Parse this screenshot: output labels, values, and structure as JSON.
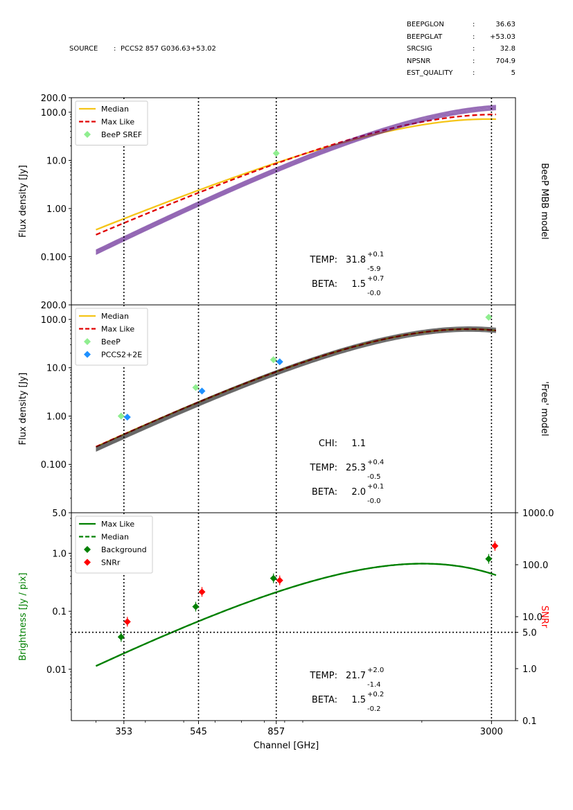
{
  "header": {
    "source_key": "SOURCE",
    "source_sep": ":",
    "source_value": "PCCS2 857 G036.63+53.02",
    "fields": [
      {
        "key": "BEEPGLON",
        "sep": ":",
        "value": "36.63"
      },
      {
        "key": "BEEPGLAT",
        "sep": ":",
        "value": "+53.03"
      },
      {
        "key": "SRCSIG",
        "sep": ":",
        "value": "32.8"
      },
      {
        "key": "NPSNR",
        "sep": ":",
        "value": "704.9"
      },
      {
        "key": "EST_QUALITY",
        "sep": ":",
        "value": "5"
      }
    ]
  },
  "x_axis": {
    "label": "Channel [GHz]",
    "ticks": [
      {
        "v": 353,
        "label": "353"
      },
      {
        "v": 545,
        "label": "545"
      },
      {
        "v": 857,
        "label": "857"
      },
      {
        "v": 3000,
        "label": "3000"
      }
    ],
    "xlim": [
      260,
      3450
    ],
    "vlines": [
      353,
      545,
      857,
      3000
    ]
  },
  "chart_data": [
    {
      "type": "line",
      "panel": "top",
      "ylabel": "Flux density  [Jy]",
      "right_label": "BeeP MBB model",
      "yscale": "log",
      "ylim": [
        0.01,
        200
      ],
      "yticks": [
        {
          "v": 0.1,
          "label": "0.100"
        },
        {
          "v": 1,
          "label": "1.00"
        },
        {
          "v": 10,
          "label": "10.0"
        },
        {
          "v": 100,
          "label": "100.0"
        },
        {
          "v": 200,
          "label": "200.0"
        }
      ],
      "series": [
        {
          "name": "Median",
          "style": "solid",
          "color": "#f5c518",
          "model": {
            "T": 31.8,
            "beta": 1.5,
            "amp": 0.615
          }
        },
        {
          "name": "Max Like",
          "style": "dashed",
          "color": "#e00000",
          "model": {
            "T": 31.8,
            "beta": 1.7,
            "amp": 0.5
          }
        },
        {
          "name": "Posterior samples",
          "style": "band",
          "color": "#4b0082",
          "model": {
            "T": 31.8,
            "beta": 2.2,
            "amp": 0.235
          }
        }
      ],
      "points": [
        {
          "name": "BeeP SREF",
          "color": "#90ee90",
          "x": [
            857
          ],
          "y": [
            14.0
          ]
        }
      ],
      "legend": [
        {
          "label": "Median",
          "kind": "line",
          "color": "#f5c518"
        },
        {
          "label": "Max Like",
          "kind": "dash",
          "color": "#e00000"
        },
        {
          "label": "BeeP SREF",
          "kind": "diamond",
          "color": "#90ee90"
        }
      ],
      "annotations": [
        {
          "key": "TEMP:",
          "value": "31.8",
          "plus": "+0.1",
          "minus": "-5.9"
        },
        {
          "key": "BETA:",
          "value": "1.5",
          "plus": "+0.7",
          "minus": "-0.0"
        }
      ]
    },
    {
      "type": "line",
      "panel": "middle",
      "ylabel": "Flux density  [Jy]",
      "right_label": "'Free' model",
      "yscale": "log",
      "ylim": [
        0.01,
        200
      ],
      "yticks": [
        {
          "v": 0.1,
          "label": "0.100"
        },
        {
          "v": 1,
          "label": "1.00"
        },
        {
          "v": 10,
          "label": "10.0"
        },
        {
          "v": 100,
          "label": "100.0"
        },
        {
          "v": 200,
          "label": "200.0"
        }
      ],
      "series": [
        {
          "name": "Median",
          "style": "solid",
          "color": "#f5c518",
          "model": {
            "T": 25.3,
            "beta": 2.0,
            "amp": 0.42
          }
        },
        {
          "name": "Max Like",
          "style": "dashed",
          "color": "#e00000",
          "model": {
            "T": 25.3,
            "beta": 2.0,
            "amp": 0.42
          }
        },
        {
          "name": "Posterior samples",
          "style": "band",
          "color": "#000000",
          "model": {
            "T": 25.3,
            "beta": 2.05,
            "amp": 0.38
          }
        }
      ],
      "points": [
        {
          "name": "BeeP",
          "color": "#90ee90",
          "x": [
            353,
            545,
            857,
            3000
          ],
          "y": [
            1.0,
            3.9,
            14.7,
            111
          ]
        },
        {
          "name": "PCCS2+2E",
          "color": "#1e90ff",
          "x": [
            353,
            545,
            857
          ],
          "y": [
            0.95,
            3.3,
            13.3
          ]
        }
      ],
      "legend": [
        {
          "label": "Median",
          "kind": "line",
          "color": "#f5c518"
        },
        {
          "label": "Max Like",
          "kind": "dash",
          "color": "#e00000"
        },
        {
          "label": "BeeP",
          "kind": "diamond",
          "color": "#90ee90"
        },
        {
          "label": "PCCS2+2E",
          "kind": "diamond",
          "color": "#1e90ff"
        }
      ],
      "annotations": [
        {
          "key": "CHI:",
          "value": "1.1",
          "plus": "",
          "minus": ""
        },
        {
          "key": "TEMP:",
          "value": "25.3",
          "plus": "+0.4",
          "minus": "-0.5"
        },
        {
          "key": "BETA:",
          "value": "2.0",
          "plus": "+0.1",
          "minus": "-0.0"
        }
      ]
    },
    {
      "type": "line",
      "panel": "bottom",
      "ylabel": "Brightness [Jy / pix]",
      "ylabel_color": "#008000",
      "y2label": "SNRr",
      "y2label_color": "#ff0000",
      "yscale": "log",
      "ylim": [
        0.0013,
        5
      ],
      "y2lim": [
        0.1,
        1000
      ],
      "yticks": [
        {
          "v": 0.01,
          "label": "0.01"
        },
        {
          "v": 0.1,
          "label": "0.1"
        },
        {
          "v": 1,
          "label": "1.0"
        },
        {
          "v": 5,
          "label": "5.0"
        }
      ],
      "y2ticks": [
        {
          "v": 0.1,
          "label": "0.1"
        },
        {
          "v": 1,
          "label": "1.0"
        },
        {
          "v": 5,
          "label": "5.0"
        },
        {
          "v": 10,
          "label": "10.0"
        },
        {
          "v": 100,
          "label": "100.0"
        },
        {
          "v": 1000,
          "label": "1000.0"
        }
      ],
      "hline_y2": 5,
      "series": [
        {
          "name": "Max Like",
          "style": "solid",
          "color": "#008000",
          "model": {
            "T": 21.7,
            "beta": 1.5,
            "amp": 0.0188
          }
        },
        {
          "name": "Median",
          "style": "dashed",
          "color": "#008000",
          "model": {
            "T": 21.7,
            "beta": 1.5,
            "amp": 0.0188
          }
        }
      ],
      "points": [
        {
          "name": "Background",
          "color": "#008000",
          "x": [
            353,
            545,
            857,
            3000
          ],
          "y": [
            0.036,
            0.12,
            0.37,
            0.8
          ]
        },
        {
          "name": "SNRr",
          "color": "#ff0000",
          "axis": "y2",
          "x": [
            353,
            545,
            857,
            3000
          ],
          "y": [
            8.0,
            30,
            50,
            230
          ]
        }
      ],
      "legend": [
        {
          "label": "Max Like",
          "kind": "line",
          "color": "#008000"
        },
        {
          "label": "Median",
          "kind": "dash",
          "color": "#008000"
        },
        {
          "label": "Background",
          "kind": "diamond",
          "color": "#008000"
        },
        {
          "label": "SNRr",
          "kind": "diamond",
          "color": "#ff0000"
        }
      ],
      "annotations": [
        {
          "key": "TEMP:",
          "value": "21.7",
          "plus": "+2.0",
          "minus": "-1.4"
        },
        {
          "key": "BETA:",
          "value": "1.5",
          "plus": "+0.2",
          "minus": "-0.2"
        }
      ]
    }
  ]
}
